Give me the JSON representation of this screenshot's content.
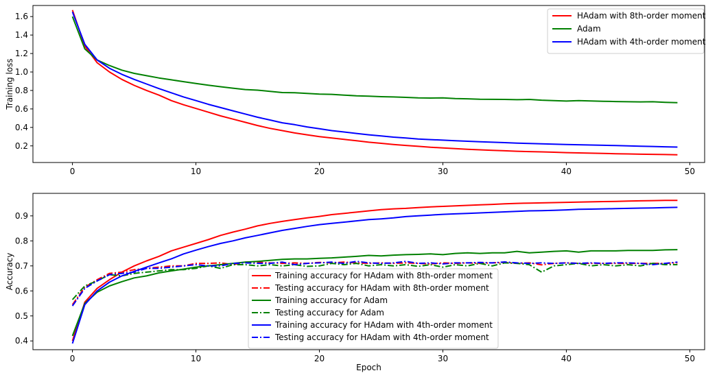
{
  "chart_data": [
    {
      "type": "line",
      "title": "",
      "xlabel": "",
      "ylabel": "Training loss",
      "xlim": [
        -3.2,
        51.2
      ],
      "ylim": [
        0.02,
        1.72
      ],
      "xticks": [
        0,
        10,
        20,
        30,
        40,
        50
      ],
      "yticks": [
        0.2,
        0.4,
        0.6,
        0.8,
        1.0,
        1.2,
        1.4,
        1.6
      ],
      "ytick_labels": [
        "0.2",
        "0.4",
        "0.6",
        "0.8",
        "1.0",
        "1.2",
        "1.4",
        "1.6"
      ],
      "legend_position": "top-right",
      "series": [
        {
          "name": "HAdam with 8th-order moment",
          "color": "#ff0000",
          "style": "solid",
          "x": [
            0,
            1,
            2,
            3,
            4,
            5,
            6,
            7,
            8,
            9,
            10,
            11,
            12,
            13,
            14,
            15,
            16,
            17,
            18,
            19,
            20,
            21,
            22,
            23,
            24,
            25,
            26,
            27,
            28,
            29,
            30,
            31,
            32,
            33,
            34,
            35,
            36,
            37,
            38,
            39,
            40,
            41,
            42,
            43,
            44,
            45,
            46,
            47,
            48,
            49
          ],
          "y": [
            1.67,
            1.28,
            1.1,
            1.0,
            0.92,
            0.855,
            0.8,
            0.75,
            0.69,
            0.645,
            0.605,
            0.565,
            0.525,
            0.49,
            0.455,
            0.42,
            0.39,
            0.365,
            0.34,
            0.32,
            0.3,
            0.285,
            0.27,
            0.255,
            0.24,
            0.228,
            0.215,
            0.205,
            0.195,
            0.185,
            0.178,
            0.17,
            0.163,
            0.157,
            0.152,
            0.147,
            0.142,
            0.138,
            0.135,
            0.131,
            0.127,
            0.124,
            0.121,
            0.118,
            0.115,
            0.113,
            0.11,
            0.108,
            0.106,
            0.104
          ]
        },
        {
          "name": "Adam",
          "color": "#008000",
          "style": "solid",
          "x": [
            0,
            1,
            2,
            3,
            4,
            5,
            6,
            7,
            8,
            9,
            10,
            11,
            12,
            13,
            14,
            15,
            16,
            17,
            18,
            19,
            20,
            21,
            22,
            23,
            24,
            25,
            26,
            27,
            28,
            29,
            30,
            31,
            32,
            33,
            34,
            35,
            36,
            37,
            38,
            39,
            40,
            41,
            42,
            43,
            44,
            45,
            46,
            47,
            48,
            49
          ],
          "y": [
            1.6,
            1.25,
            1.13,
            1.07,
            1.02,
            0.985,
            0.96,
            0.935,
            0.915,
            0.895,
            0.875,
            0.857,
            0.84,
            0.825,
            0.81,
            0.803,
            0.79,
            0.777,
            0.775,
            0.768,
            0.76,
            0.758,
            0.75,
            0.742,
            0.738,
            0.733,
            0.73,
            0.725,
            0.72,
            0.718,
            0.72,
            0.712,
            0.71,
            0.705,
            0.704,
            0.703,
            0.7,
            0.703,
            0.695,
            0.69,
            0.685,
            0.69,
            0.686,
            0.683,
            0.68,
            0.678,
            0.676,
            0.678,
            0.672,
            0.668
          ]
        },
        {
          "name": "HAdam with 4th-order moment",
          "color": "#0000ff",
          "style": "solid",
          "x": [
            0,
            1,
            2,
            3,
            4,
            5,
            6,
            7,
            8,
            9,
            10,
            11,
            12,
            13,
            14,
            15,
            16,
            17,
            18,
            19,
            20,
            21,
            22,
            23,
            24,
            25,
            26,
            27,
            28,
            29,
            30,
            31,
            32,
            33,
            34,
            35,
            36,
            37,
            38,
            39,
            40,
            41,
            42,
            43,
            44,
            45,
            46,
            47,
            48,
            49
          ],
          "y": [
            1.65,
            1.3,
            1.13,
            1.04,
            0.975,
            0.92,
            0.87,
            0.82,
            0.775,
            0.73,
            0.69,
            0.65,
            0.615,
            0.58,
            0.545,
            0.51,
            0.48,
            0.45,
            0.43,
            0.405,
            0.385,
            0.365,
            0.35,
            0.335,
            0.32,
            0.308,
            0.295,
            0.285,
            0.275,
            0.268,
            0.262,
            0.255,
            0.25,
            0.245,
            0.24,
            0.235,
            0.23,
            0.226,
            0.222,
            0.218,
            0.215,
            0.212,
            0.209,
            0.206,
            0.203,
            0.2,
            0.197,
            0.194,
            0.19,
            0.187
          ]
        }
      ]
    },
    {
      "type": "line",
      "title": "",
      "xlabel": "Epoch",
      "ylabel": "Accuracy",
      "xlim": [
        -3.2,
        51.2
      ],
      "ylim": [
        0.365,
        0.99
      ],
      "xticks": [
        0,
        10,
        20,
        30,
        40,
        50
      ],
      "yticks": [
        0.4,
        0.5,
        0.6,
        0.7,
        0.8,
        0.9
      ],
      "ytick_labels": [
        "0.4",
        "0.5",
        "0.6",
        "0.7",
        "0.8",
        "0.9"
      ],
      "legend_position": "lower-center",
      "series": [
        {
          "name": "Training accuracy for HAdam with 8th-order moment",
          "color": "#ff0000",
          "style": "solid",
          "x": [
            0,
            1,
            2,
            3,
            4,
            5,
            6,
            7,
            8,
            9,
            10,
            11,
            12,
            13,
            14,
            15,
            16,
            17,
            18,
            19,
            20,
            21,
            22,
            23,
            24,
            25,
            26,
            27,
            28,
            29,
            30,
            31,
            32,
            33,
            34,
            35,
            36,
            37,
            38,
            39,
            40,
            41,
            42,
            43,
            44,
            45,
            46,
            47,
            48,
            49
          ],
          "y": [
            0.4,
            0.555,
            0.61,
            0.645,
            0.675,
            0.7,
            0.72,
            0.738,
            0.76,
            0.775,
            0.79,
            0.805,
            0.822,
            0.835,
            0.847,
            0.86,
            0.87,
            0.878,
            0.885,
            0.892,
            0.898,
            0.905,
            0.91,
            0.915,
            0.92,
            0.925,
            0.928,
            0.93,
            0.933,
            0.936,
            0.938,
            0.94,
            0.942,
            0.944,
            0.946,
            0.948,
            0.95,
            0.951,
            0.952,
            0.953,
            0.954,
            0.955,
            0.956,
            0.957,
            0.958,
            0.959,
            0.96,
            0.961,
            0.962,
            0.962
          ]
        },
        {
          "name": "Testing accuracy for HAdam with 8th-order moment",
          "color": "#ff0000",
          "style": "dashdot",
          "x": [
            0,
            1,
            2,
            3,
            4,
            5,
            6,
            7,
            8,
            9,
            10,
            11,
            12,
            13,
            14,
            15,
            16,
            17,
            18,
            19,
            20,
            21,
            22,
            23,
            24,
            25,
            26,
            27,
            28,
            29,
            30,
            31,
            32,
            33,
            34,
            35,
            36,
            37,
            38,
            39,
            40,
            41,
            42,
            43,
            44,
            45,
            46,
            47,
            48,
            49
          ],
          "y": [
            0.545,
            0.615,
            0.645,
            0.67,
            0.675,
            0.685,
            0.69,
            0.695,
            0.7,
            0.7,
            0.71,
            0.71,
            0.712,
            0.705,
            0.715,
            0.715,
            0.712,
            0.71,
            0.712,
            0.71,
            0.714,
            0.712,
            0.715,
            0.712,
            0.71,
            0.712,
            0.71,
            0.712,
            0.71,
            0.708,
            0.712,
            0.71,
            0.712,
            0.71,
            0.712,
            0.714,
            0.71,
            0.712,
            0.704,
            0.71,
            0.712,
            0.71,
            0.71,
            0.71,
            0.71,
            0.71,
            0.71,
            0.71,
            0.71,
            0.712
          ]
        },
        {
          "name": "Training accuracy for Adam",
          "color": "#008000",
          "style": "solid",
          "x": [
            0,
            1,
            2,
            3,
            4,
            5,
            6,
            7,
            8,
            9,
            10,
            11,
            12,
            13,
            14,
            15,
            16,
            17,
            18,
            19,
            20,
            21,
            22,
            23,
            24,
            25,
            26,
            27,
            28,
            29,
            30,
            31,
            32,
            33,
            34,
            35,
            36,
            37,
            38,
            39,
            40,
            41,
            42,
            43,
            44,
            45,
            46,
            47,
            48,
            49
          ],
          "y": [
            0.42,
            0.55,
            0.595,
            0.62,
            0.637,
            0.652,
            0.66,
            0.672,
            0.68,
            0.687,
            0.695,
            0.7,
            0.705,
            0.71,
            0.715,
            0.718,
            0.722,
            0.726,
            0.728,
            0.728,
            0.73,
            0.732,
            0.735,
            0.738,
            0.742,
            0.74,
            0.743,
            0.745,
            0.746,
            0.748,
            0.745,
            0.75,
            0.752,
            0.75,
            0.752,
            0.752,
            0.758,
            0.752,
            0.755,
            0.758,
            0.76,
            0.755,
            0.76,
            0.76,
            0.76,
            0.762,
            0.762,
            0.762,
            0.764,
            0.765
          ]
        },
        {
          "name": "Testing accuracy for Adam",
          "color": "#008000",
          "style": "dashdot",
          "x": [
            0,
            1,
            2,
            3,
            4,
            5,
            6,
            7,
            8,
            9,
            10,
            11,
            12,
            13,
            14,
            15,
            16,
            17,
            18,
            19,
            20,
            21,
            22,
            23,
            24,
            25,
            26,
            27,
            28,
            29,
            30,
            31,
            32,
            33,
            34,
            35,
            36,
            37,
            38,
            39,
            40,
            41,
            42,
            43,
            44,
            45,
            46,
            47,
            48,
            49
          ],
          "y": [
            0.565,
            0.62,
            0.64,
            0.665,
            0.66,
            0.67,
            0.675,
            0.68,
            0.685,
            0.685,
            0.69,
            0.7,
            0.69,
            0.705,
            0.705,
            0.7,
            0.705,
            0.7,
            0.705,
            0.698,
            0.7,
            0.71,
            0.705,
            0.71,
            0.7,
            0.705,
            0.7,
            0.705,
            0.698,
            0.705,
            0.695,
            0.705,
            0.7,
            0.71,
            0.7,
            0.712,
            0.71,
            0.705,
            0.675,
            0.7,
            0.705,
            0.71,
            0.7,
            0.705,
            0.7,
            0.705,
            0.7,
            0.71,
            0.705,
            0.705
          ]
        },
        {
          "name": "Training accuracy for HAdam with 4th-order moment",
          "color": "#0000ff",
          "style": "solid",
          "x": [
            0,
            1,
            2,
            3,
            4,
            5,
            6,
            7,
            8,
            9,
            10,
            11,
            12,
            13,
            14,
            15,
            16,
            17,
            18,
            19,
            20,
            21,
            22,
            23,
            24,
            25,
            26,
            27,
            28,
            29,
            30,
            31,
            32,
            33,
            34,
            35,
            36,
            37,
            38,
            39,
            40,
            41,
            42,
            43,
            44,
            45,
            46,
            47,
            48,
            49
          ],
          "y": [
            0.39,
            0.545,
            0.6,
            0.635,
            0.66,
            0.678,
            0.695,
            0.712,
            0.728,
            0.748,
            0.763,
            0.777,
            0.79,
            0.8,
            0.812,
            0.822,
            0.832,
            0.842,
            0.85,
            0.858,
            0.865,
            0.87,
            0.875,
            0.88,
            0.885,
            0.888,
            0.892,
            0.897,
            0.9,
            0.903,
            0.906,
            0.908,
            0.91,
            0.912,
            0.914,
            0.916,
            0.918,
            0.92,
            0.921,
            0.922,
            0.924,
            0.926,
            0.927,
            0.928,
            0.929,
            0.93,
            0.931,
            0.932,
            0.933,
            0.934
          ]
        },
        {
          "name": "Testing accuracy for HAdam with 4th-order moment",
          "color": "#0000ff",
          "style": "dashdot",
          "x": [
            0,
            1,
            2,
            3,
            4,
            5,
            6,
            7,
            8,
            9,
            10,
            11,
            12,
            13,
            14,
            15,
            16,
            17,
            18,
            19,
            20,
            21,
            22,
            23,
            24,
            25,
            26,
            27,
            28,
            29,
            30,
            31,
            32,
            33,
            34,
            35,
            36,
            37,
            38,
            39,
            40,
            41,
            42,
            43,
            44,
            45,
            46,
            47,
            48,
            49
          ],
          "y": [
            0.54,
            0.61,
            0.64,
            0.665,
            0.67,
            0.675,
            0.69,
            0.69,
            0.695,
            0.7,
            0.705,
            0.7,
            0.7,
            0.71,
            0.712,
            0.71,
            0.71,
            0.715,
            0.705,
            0.71,
            0.712,
            0.715,
            0.71,
            0.718,
            0.712,
            0.71,
            0.712,
            0.718,
            0.71,
            0.712,
            0.708,
            0.712,
            0.712,
            0.714,
            0.712,
            0.716,
            0.712,
            0.71,
            0.712,
            0.71,
            0.712,
            0.71,
            0.712,
            0.71,
            0.712,
            0.712,
            0.71,
            0.705,
            0.71,
            0.715
          ]
        }
      ]
    }
  ]
}
